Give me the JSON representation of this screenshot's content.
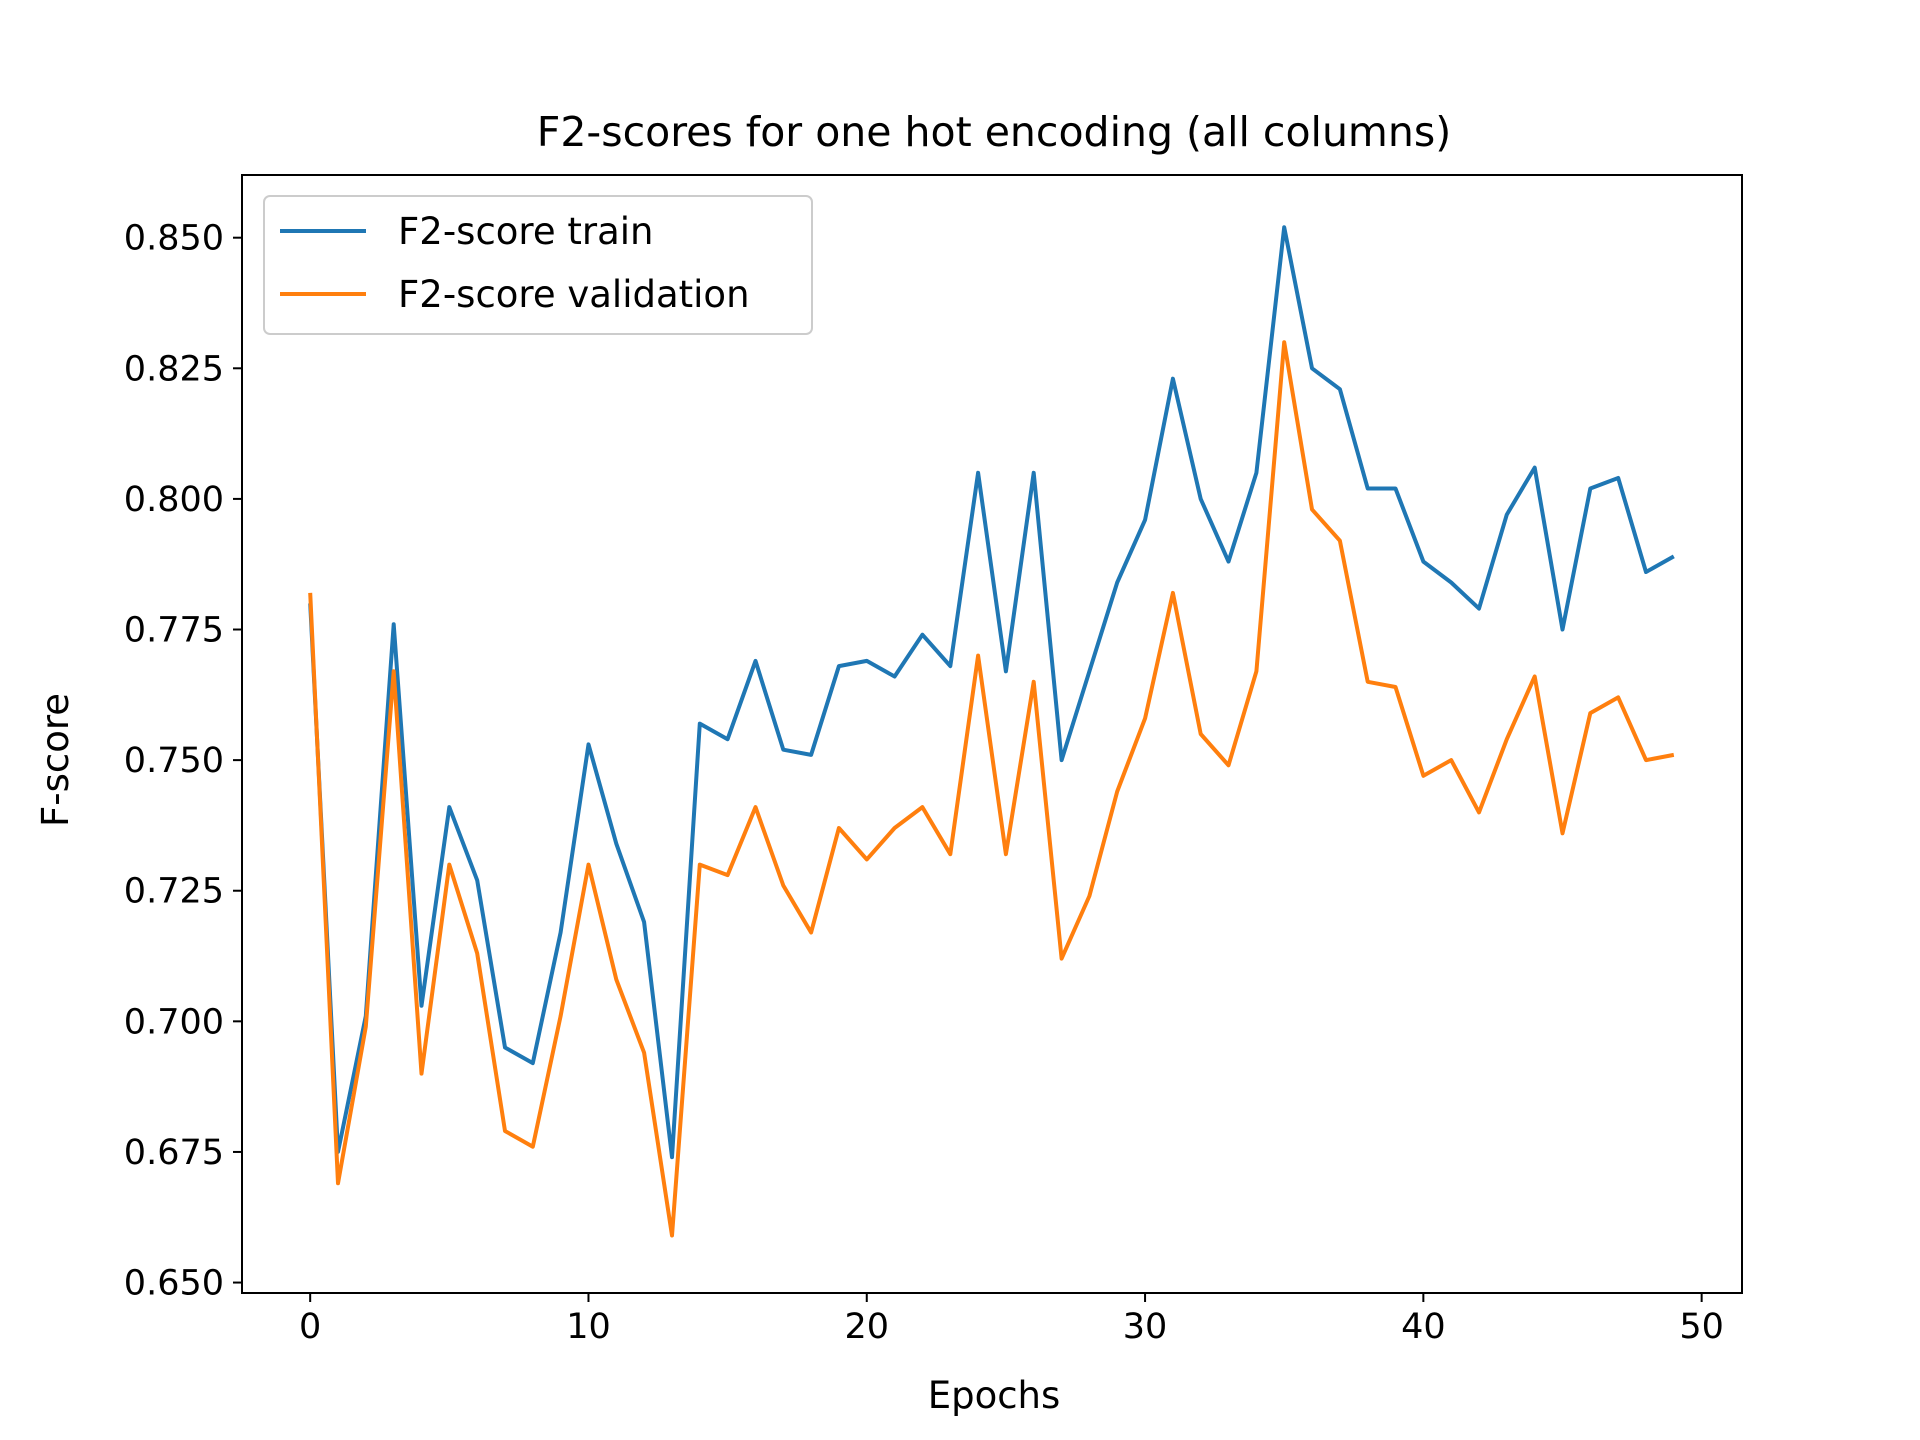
{
  "chart_data": {
    "type": "line",
    "title": "F2-scores for one hot encoding (all columns)",
    "xlabel": "Epochs",
    "ylabel": "F-score",
    "xlim": [
      -2.45,
      51.45
    ],
    "ylim": [
      0.648,
      0.862
    ],
    "xticks": [
      0,
      10,
      20,
      30,
      40,
      50
    ],
    "xtick_labels": [
      "0",
      "10",
      "20",
      "30",
      "40",
      "50"
    ],
    "yticks": [
      0.65,
      0.675,
      0.7,
      0.725,
      0.75,
      0.775,
      0.8,
      0.825,
      0.85
    ],
    "ytick_labels": [
      "0.650",
      "0.675",
      "0.700",
      "0.725",
      "0.750",
      "0.775",
      "0.800",
      "0.825",
      "0.850"
    ],
    "grid": false,
    "legend_position": "top-left",
    "x": [
      0,
      1,
      2,
      3,
      4,
      5,
      6,
      7,
      8,
      9,
      10,
      11,
      12,
      13,
      14,
      15,
      16,
      17,
      18,
      19,
      20,
      21,
      22,
      23,
      24,
      25,
      26,
      27,
      28,
      29,
      30,
      31,
      32,
      33,
      34,
      35,
      36,
      37,
      38,
      39,
      40,
      41,
      42,
      43,
      44,
      45,
      46,
      47,
      48,
      49
    ],
    "series": [
      {
        "name": "F2-score train",
        "color": "#1f77b4",
        "values": [
          0.78,
          0.675,
          0.701,
          0.776,
          0.703,
          0.741,
          0.727,
          0.695,
          0.692,
          0.717,
          0.753,
          0.734,
          0.719,
          0.674,
          0.757,
          0.754,
          0.769,
          0.752,
          0.751,
          0.768,
          0.769,
          0.766,
          0.774,
          0.768,
          0.805,
          0.767,
          0.805,
          0.75,
          0.767,
          0.784,
          0.796,
          0.823,
          0.8,
          0.788,
          0.805,
          0.852,
          0.825,
          0.821,
          0.802,
          0.802,
          0.788,
          0.784,
          0.779,
          0.797,
          0.806,
          0.775,
          0.802,
          0.804,
          0.786,
          0.789
        ]
      },
      {
        "name": "F2-score validation",
        "color": "#ff7f0e",
        "values": [
          0.782,
          0.669,
          0.699,
          0.767,
          0.69,
          0.73,
          0.713,
          0.679,
          0.676,
          0.701,
          0.73,
          0.708,
          0.694,
          0.659,
          0.73,
          0.728,
          0.741,
          0.726,
          0.717,
          0.737,
          0.731,
          0.737,
          0.741,
          0.732,
          0.77,
          0.732,
          0.765,
          0.712,
          0.724,
          0.744,
          0.758,
          0.782,
          0.755,
          0.749,
          0.767,
          0.83,
          0.798,
          0.792,
          0.765,
          0.764,
          0.747,
          0.75,
          0.74,
          0.754,
          0.766,
          0.736,
          0.759,
          0.762,
          0.75,
          0.751
        ]
      }
    ]
  }
}
